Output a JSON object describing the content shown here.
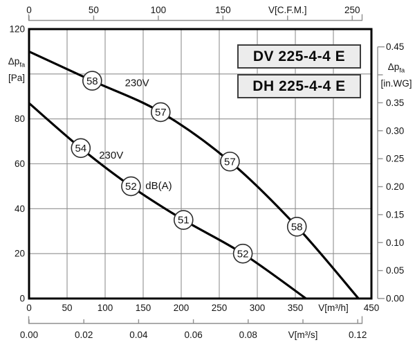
{
  "figure": {
    "bg": "#ffffff",
    "grid_color": "#8f8f8f",
    "scale_color": "#8f8f8f",
    "curve_color": "#000000",
    "border_color": "#000000",
    "marker_fill": "#ffffff",
    "marker_stroke": "#2b2b2b",
    "box_fill": "#ececec",
    "box_border": "#3c3c3c"
  },
  "chart_data": {
    "type": "line",
    "title_boxes": [
      {
        "label": "DV 225-4-4 E"
      },
      {
        "label": "DH 225-4-4 E"
      }
    ],
    "axes": {
      "left_pa": {
        "sym": "Δp",
        "sub": "fa",
        "unit": "[Pa]",
        "min": 0,
        "max": 120,
        "step": 20,
        "values": [
          0,
          20,
          40,
          60,
          80,
          100,
          120
        ],
        "labels": [
          "0",
          "20",
          "40",
          "60",
          "80",
          "",
          "120"
        ]
      },
      "right_inwg": {
        "sym": "Δp",
        "sub": "fa",
        "unit": "[in.WG]",
        "min": 0,
        "max": 0.45,
        "step": 0.05,
        "values": [
          0,
          0.05,
          0.1,
          0.15,
          0.2,
          0.25,
          0.3,
          0.35,
          0.4,
          0.45
        ],
        "labels": [
          "0.00",
          "0.05",
          "0.10",
          "0.15",
          "0.20",
          "0.25",
          "0.30",
          "0.35",
          "",
          "0.45"
        ],
        "pa_per_inwg": 249.09
      },
      "top_cfm": {
        "unit_label": "V[C.F.M.]",
        "values": [
          0,
          50,
          100,
          150,
          200,
          250
        ],
        "labels": [
          "0",
          "50",
          "100",
          "150",
          "V[C.F.M.]",
          "250"
        ],
        "m3h_per_cfm": 1.699
      },
      "bottom_m3h": {
        "unit_label": "V[m³/h]",
        "min": 0,
        "max": 450,
        "step": 50,
        "values": [
          0,
          50,
          100,
          150,
          200,
          250,
          300,
          350,
          400,
          450
        ],
        "labels": [
          "0",
          "50",
          "100",
          "150",
          "200",
          "250",
          "300",
          "350",
          "V[m³/h]",
          "450"
        ]
      },
      "bottom_m3s": {
        "unit_label": "V[m³/s]",
        "values": [
          0,
          0.02,
          0.04,
          0.06,
          0.08,
          0.1,
          0.12
        ],
        "labels": [
          "0.00",
          "0.02",
          "0.04",
          "0.06",
          "0.08",
          "V[m³/s]",
          "0.12"
        ],
        "m3h_per_m3s": 3600
      }
    },
    "grid": {
      "vertical_m3h": [
        50,
        100,
        150,
        200,
        250,
        300,
        350,
        400
      ],
      "horizontal_pa": [
        20,
        40,
        60,
        80,
        100
      ]
    },
    "series": [
      {
        "name": "high-speed-230V",
        "voltage": "230V",
        "points": [
          [
            0,
            110
          ],
          [
            83,
            97
          ],
          [
            173,
            83
          ],
          [
            264,
            61
          ],
          [
            352,
            32
          ],
          [
            433,
            0
          ]
        ],
        "markers": [
          {
            "v": 83,
            "pa": 97,
            "db": "58"
          },
          {
            "v": 173,
            "pa": 83,
            "db": "57"
          },
          {
            "v": 264,
            "pa": 61,
            "db": "57"
          },
          {
            "v": 352,
            "pa": 32,
            "db": "58"
          }
        ]
      },
      {
        "name": "low-speed-230V",
        "voltage": "230V",
        "points": [
          [
            0,
            87
          ],
          [
            68,
            67
          ],
          [
            134,
            50
          ],
          [
            203,
            35
          ],
          [
            281,
            20
          ],
          [
            364,
            0
          ]
        ],
        "markers": [
          {
            "v": 68,
            "pa": 67,
            "db": "54"
          },
          {
            "v": 134,
            "pa": 50,
            "db": "52"
          },
          {
            "v": 203,
            "pa": 35,
            "db": "51"
          },
          {
            "v": 281,
            "pa": 20,
            "db": "52"
          }
        ]
      }
    ],
    "annotations": [
      {
        "text": "230V",
        "v": 126,
        "pa": 94.5
      },
      {
        "text": "230V",
        "v": 92,
        "pa": 62.3
      },
      {
        "text": "dB(A)",
        "v": 153,
        "pa": 48.7
      }
    ]
  }
}
